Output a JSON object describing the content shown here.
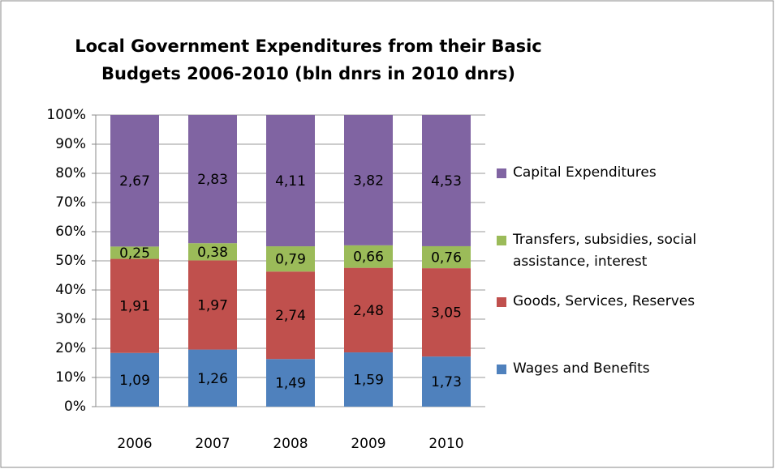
{
  "chart_data": {
    "type": "bar",
    "stacking": "percent",
    "title": "Local Government Expenditures from their Basic Budgets 2006-2010 (bln dnrs in 2010 dnrs)",
    "categories": [
      "2006",
      "2007",
      "2008",
      "2009",
      "2010"
    ],
    "series": [
      {
        "name": "Wages and Benefits",
        "color": "#4f81bd",
        "values": [
          1.09,
          1.26,
          1.49,
          1.59,
          1.73
        ],
        "value_labels": [
          "1,09",
          "1,26",
          "1,49",
          "1,59",
          "1,73"
        ]
      },
      {
        "name": "Goods, Services, Reserves",
        "color": "#c0504d",
        "values": [
          1.91,
          1.97,
          2.74,
          2.48,
          3.05
        ],
        "value_labels": [
          "1,91",
          "1,97",
          "2,74",
          "2,48",
          "3,05"
        ]
      },
      {
        "name": "Transfers, subsidies, social assistance, interest",
        "color": "#9bbb59",
        "values": [
          0.25,
          0.38,
          0.79,
          0.66,
          0.76
        ],
        "value_labels": [
          "0,25",
          "0,38",
          "0,79",
          "0,66",
          "0,76"
        ]
      },
      {
        "name": "Capital Expenditures",
        "color": "#8064a2",
        "values": [
          2.67,
          2.83,
          4.11,
          3.82,
          4.53
        ],
        "value_labels": [
          "2,67",
          "2,83",
          "4,11",
          "3,82",
          "4,53"
        ]
      }
    ],
    "ylim": [
      0,
      100
    ],
    "yticks": [
      {
        "value": 0,
        "label": "0%"
      },
      {
        "value": 10,
        "label": "10%"
      },
      {
        "value": 20,
        "label": "20%"
      },
      {
        "value": 30,
        "label": "30%"
      },
      {
        "value": 40,
        "label": "40%"
      },
      {
        "value": 50,
        "label": "50%"
      },
      {
        "value": 60,
        "label": "60%"
      },
      {
        "value": 70,
        "label": "70%"
      },
      {
        "value": 80,
        "label": "80%"
      },
      {
        "value": 90,
        "label": "90%"
      },
      {
        "value": 100,
        "label": "100%"
      }
    ],
    "grid": true,
    "legend": "right"
  }
}
